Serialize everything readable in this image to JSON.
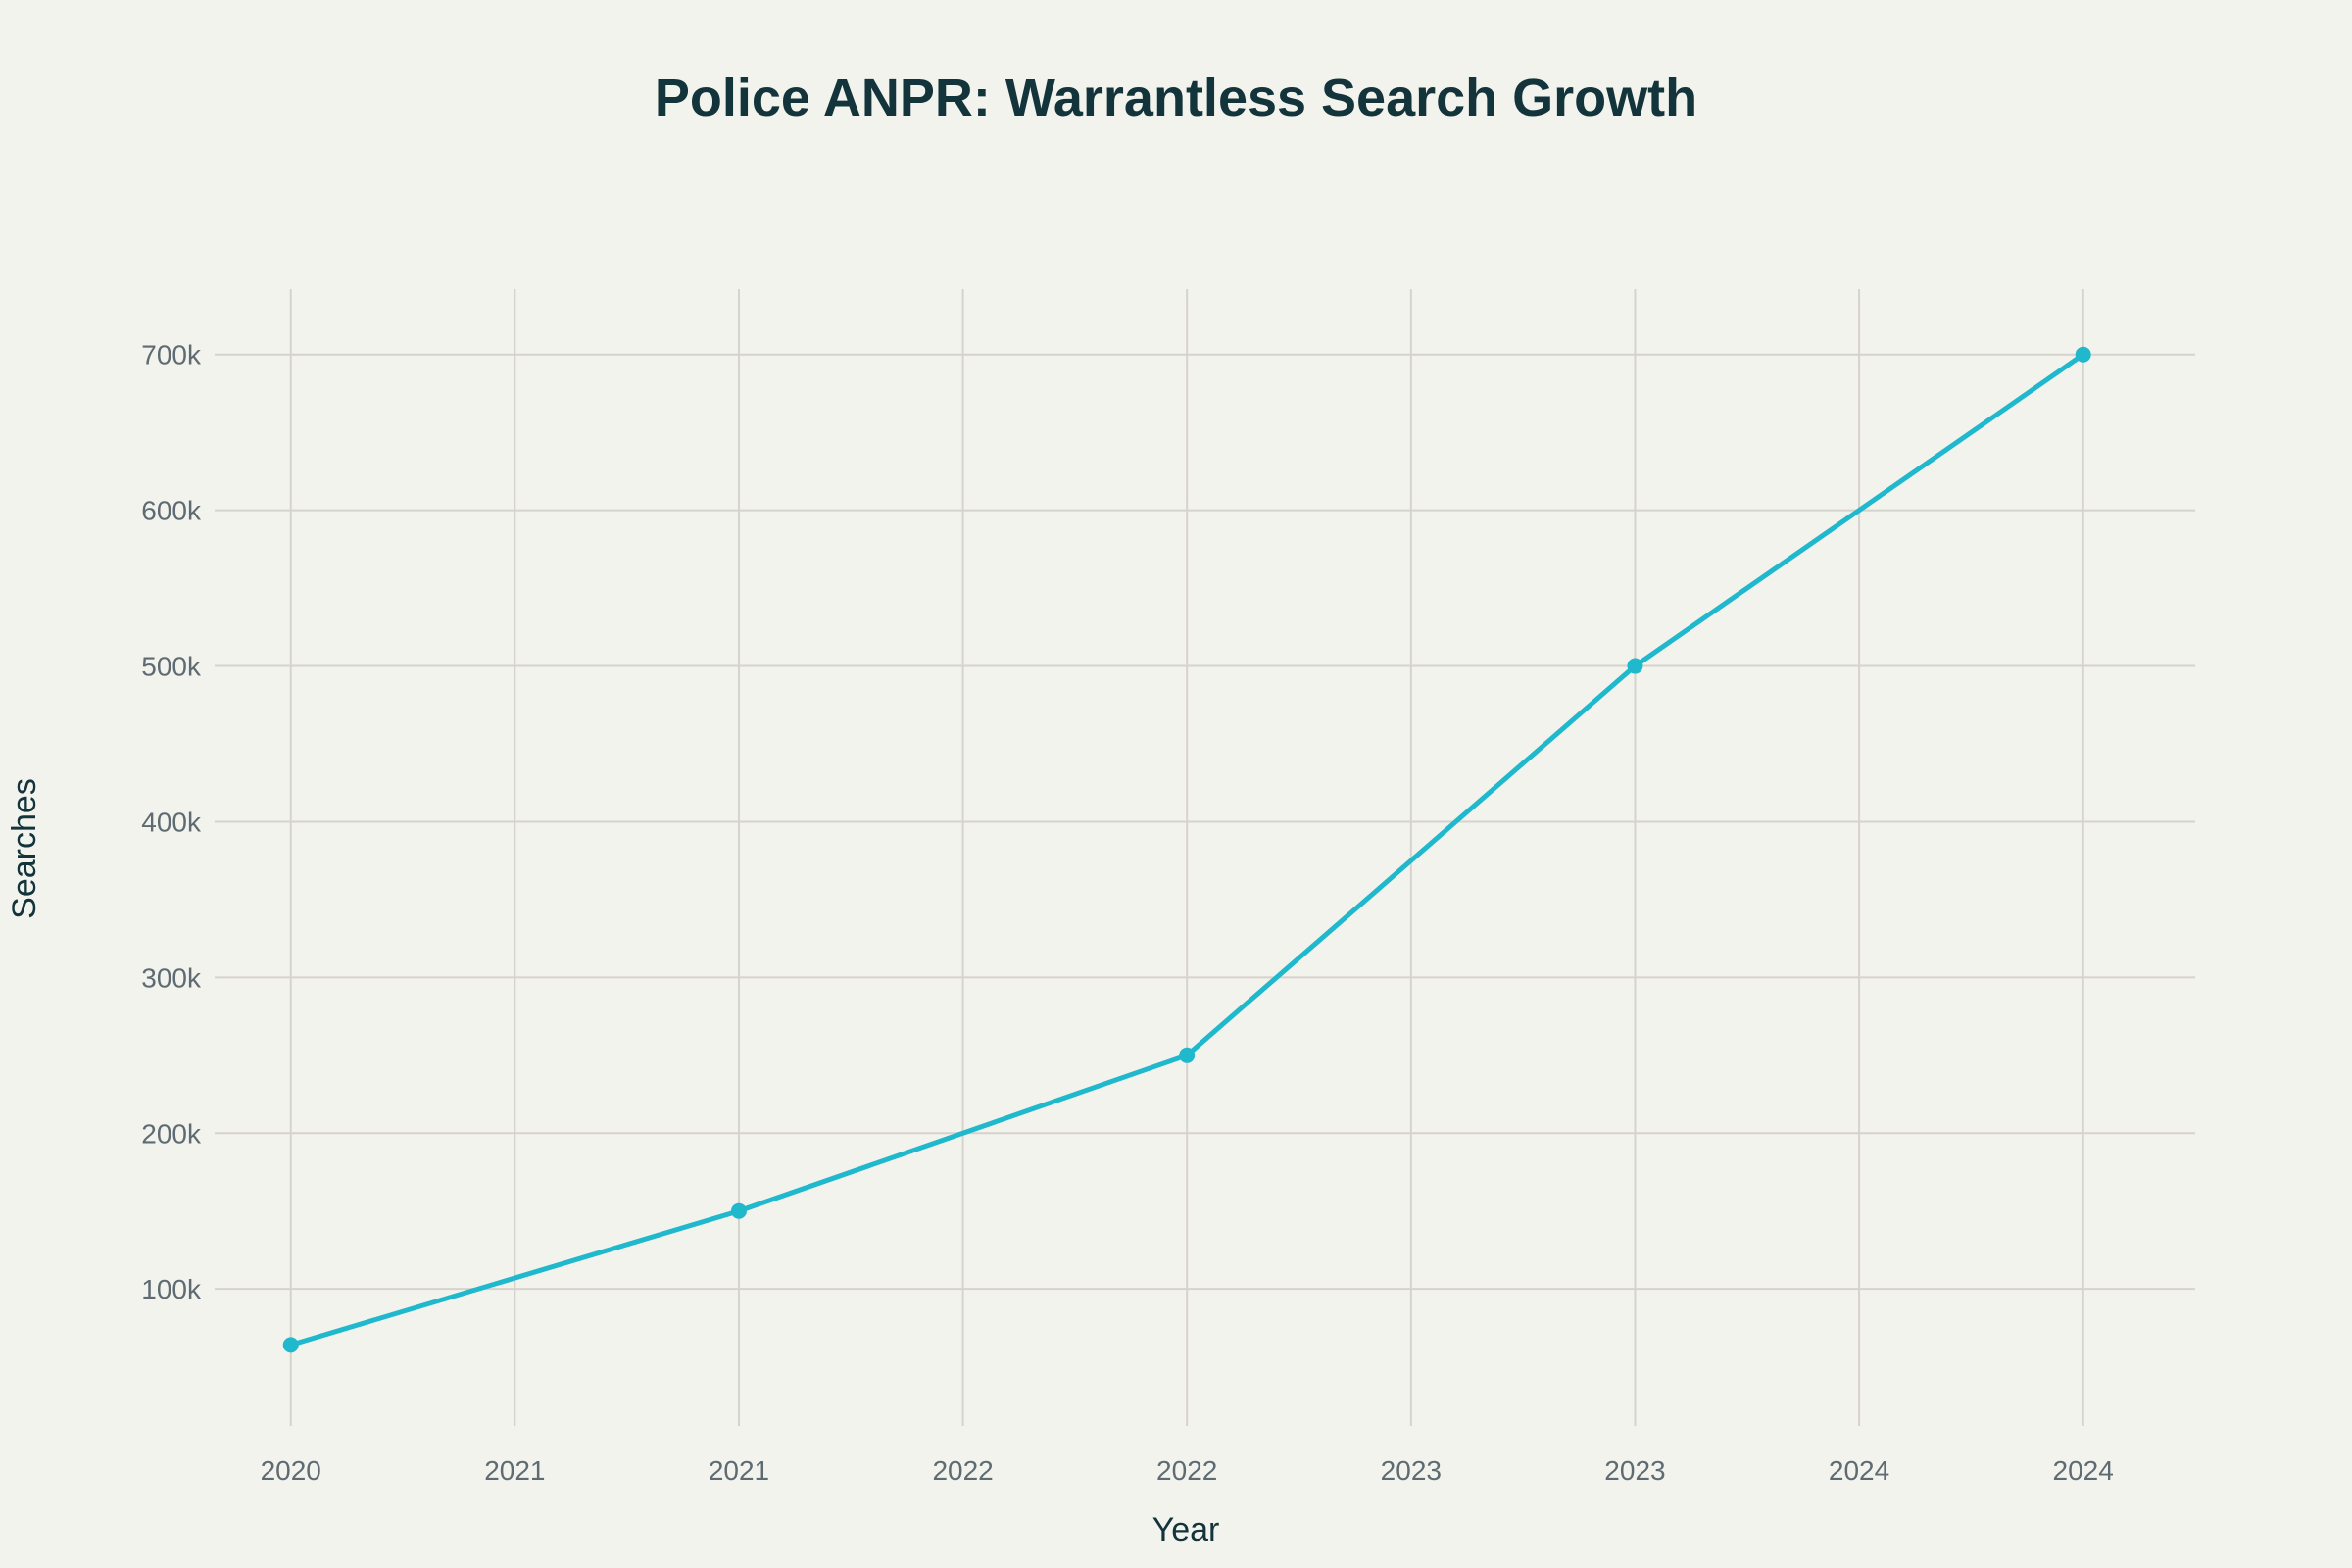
{
  "chart_data": {
    "type": "line",
    "title": "Police ANPR: Warrantless Search Growth",
    "xlabel": "Year",
    "ylabel": "Searches",
    "x": [
      2020,
      2021,
      2022,
      2023,
      2024
    ],
    "values": [
      64000,
      150000,
      250000,
      500000,
      700000
    ],
    "xlim": [
      2019.83,
      2024.25
    ],
    "ylim": [
      12000,
      742000
    ],
    "x_ticks": [
      2020,
      2020.5,
      2021,
      2021.5,
      2022,
      2022.5,
      2023,
      2023.5,
      2024
    ],
    "x_tick_labels": [
      "2020",
      "2021",
      "2021",
      "2022",
      "2022",
      "2023",
      "2023",
      "2024",
      "2024"
    ],
    "y_ticks": [
      100000,
      200000,
      300000,
      400000,
      500000,
      600000,
      700000
    ],
    "y_tick_labels": [
      "100k",
      "200k",
      "300k",
      "400k",
      "500k",
      "600k",
      "700k"
    ],
    "grid": true,
    "markers": true,
    "colors": {
      "line": "#1fb8cd",
      "background": "#f3f3ee",
      "grid": "#d6d2cc",
      "title": "#13343b"
    }
  }
}
